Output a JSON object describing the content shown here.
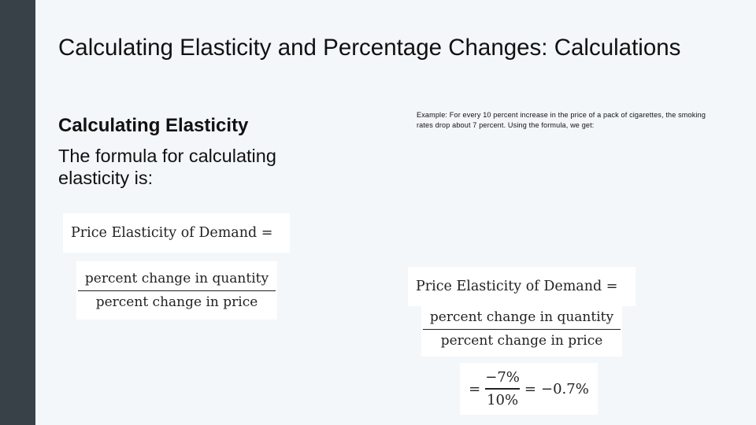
{
  "slide": {
    "title": "Calculating Elasticity and Percentage Changes: Calculations",
    "subheading": "Calculating Elasticity",
    "body": "The formula for calculating elasticity is:",
    "example": "Example: For every 10 percent increase in the price of a pack of cigarettes, the smoking rates drop about 7 percent. Using the formula, we get:"
  },
  "formula_left": {
    "lhs": "Price Elasticity of Demand =",
    "numerator": "percent change in quantity",
    "denominator": "percent change in price"
  },
  "formula_right": {
    "lhs": "Price Elasticity of Demand =",
    "numerator": "percent change in quantity",
    "denominator": "percent change in price",
    "eq1": "=",
    "calc_numerator": "−7%",
    "calc_denominator": "10%",
    "eq2": "=",
    "result": "−0.7%"
  },
  "colors": {
    "sidebar": "#384048",
    "background": "#f3f7fa"
  }
}
